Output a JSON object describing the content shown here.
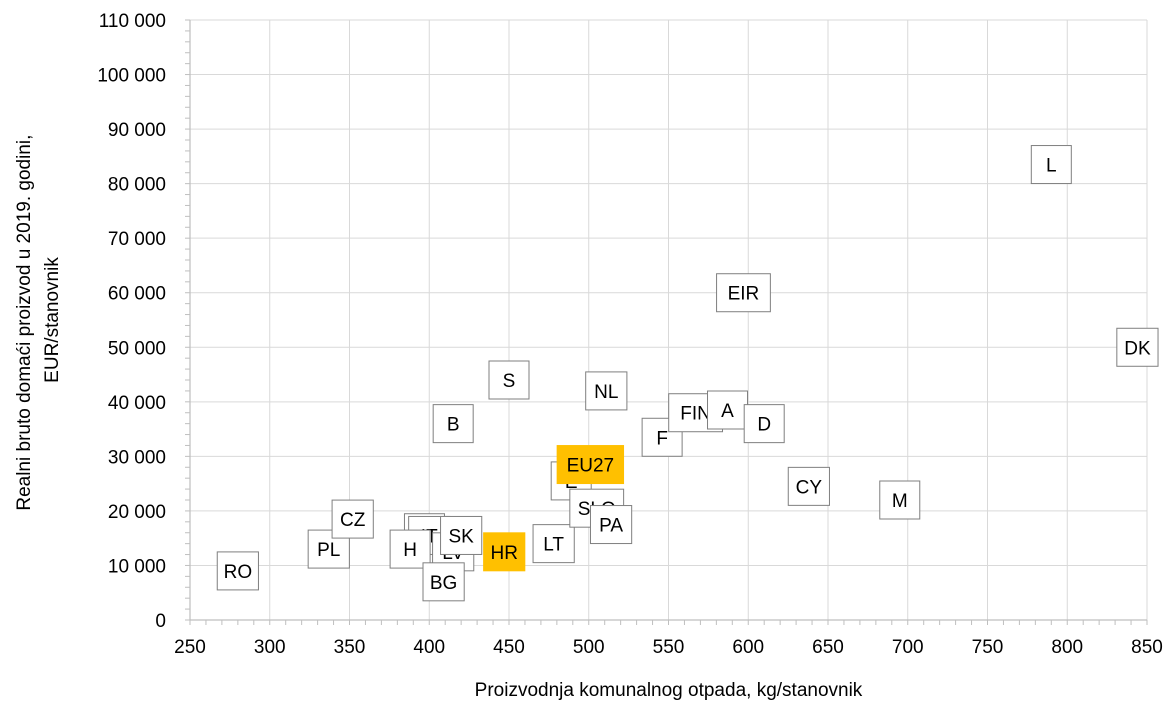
{
  "chart_data": {
    "type": "scatter",
    "title": "",
    "xlabel": "Proizvodnja komunalnog otpada, kg/stanovnik",
    "ylabel_lines": [
      "Realni bruto domaći proizvod u 2019. godini,",
      "EUR/stanovnik"
    ],
    "xlim": [
      250,
      850
    ],
    "ylim": [
      0,
      110000
    ],
    "x_ticks": [
      250,
      300,
      350,
      400,
      450,
      500,
      550,
      600,
      650,
      700,
      750,
      800,
      850
    ],
    "y_ticks": [
      0,
      10000,
      20000,
      30000,
      40000,
      50000,
      60000,
      70000,
      80000,
      90000,
      100000,
      110000
    ],
    "x_tick_labels": [
      "250",
      "300",
      "350",
      "400",
      "450",
      "500",
      "550",
      "600",
      "650",
      "700",
      "750",
      "800",
      "850"
    ],
    "y_tick_labels": [
      "0",
      "10 000",
      "20 000",
      "30 000",
      "40 000",
      "50 000",
      "60 000",
      "70 000",
      "80 000",
      "90 000",
      "100 000",
      "110 000"
    ],
    "grid": true,
    "legend": "none",
    "highlight_color": "#ffc000",
    "points": [
      {
        "label": "RO",
        "x": 280,
        "y": 9000,
        "highlight": false
      },
      {
        "label": "PL",
        "x": 337,
        "y": 13000,
        "highlight": false
      },
      {
        "label": "CZ",
        "x": 352,
        "y": 18500,
        "highlight": false
      },
      {
        "label": "E",
        "x": 397,
        "y": 16000,
        "highlight": false
      },
      {
        "label": "IT",
        "x": 400,
        "y": 15500,
        "highlight": false
      },
      {
        "label": "H",
        "x": 388,
        "y": 13000,
        "highlight": false
      },
      {
        "label": "LV",
        "x": 415,
        "y": 12500,
        "highlight": false
      },
      {
        "label": "SK",
        "x": 420,
        "y": 15500,
        "highlight": false
      },
      {
        "label": "BG",
        "x": 409,
        "y": 7000,
        "highlight": false
      },
      {
        "label": "HR",
        "x": 447,
        "y": 12500,
        "highlight": true
      },
      {
        "label": "LT",
        "x": 478,
        "y": 14000,
        "highlight": false
      },
      {
        "label": "S",
        "x": 450,
        "y": 44000,
        "highlight": false
      },
      {
        "label": "B",
        "x": 415,
        "y": 36000,
        "highlight": false
      },
      {
        "label": "E",
        "x": 489,
        "y": 25500,
        "highlight": false
      },
      {
        "label": "EU27",
        "x": 501,
        "y": 28500,
        "highlight": true
      },
      {
        "label": "SLO",
        "x": 505,
        "y": 20500,
        "highlight": false
      },
      {
        "label": "PA",
        "x": 514,
        "y": 17500,
        "highlight": false
      },
      {
        "label": "NL",
        "x": 511,
        "y": 42000,
        "highlight": false
      },
      {
        "label": "F",
        "x": 546,
        "y": 33500,
        "highlight": false
      },
      {
        "label": "FIN",
        "x": 567,
        "y": 38000,
        "highlight": false
      },
      {
        "label": "A",
        "x": 587,
        "y": 38500,
        "highlight": false
      },
      {
        "label": "D",
        "x": 610,
        "y": 36000,
        "highlight": false
      },
      {
        "label": "EIR",
        "x": 597,
        "y": 60000,
        "highlight": false
      },
      {
        "label": "CY",
        "x": 638,
        "y": 24500,
        "highlight": false
      },
      {
        "label": "M",
        "x": 695,
        "y": 22000,
        "highlight": false
      },
      {
        "label": "L",
        "x": 790,
        "y": 83500,
        "highlight": false
      },
      {
        "label": "DK",
        "x": 844,
        "y": 50000,
        "highlight": false
      }
    ]
  }
}
